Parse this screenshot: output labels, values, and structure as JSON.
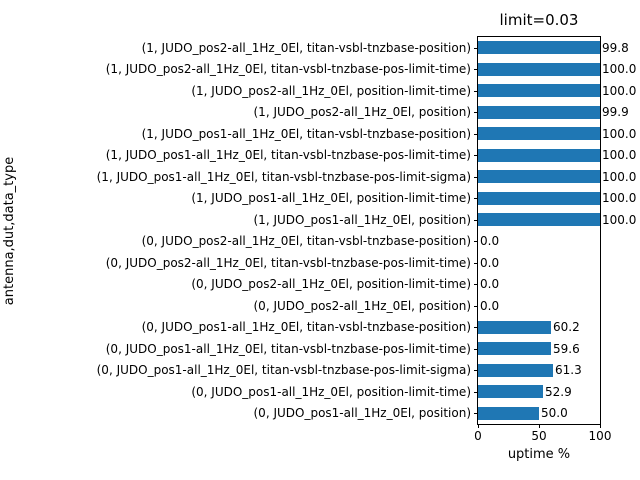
{
  "chart_data": {
    "type": "bar",
    "orientation": "horizontal",
    "title": "limit=0.03",
    "xlabel": "uptime %",
    "ylabel": "antenna,dut,data_type",
    "xlim": [
      0,
      100
    ],
    "xticks": [
      "0",
      "50",
      "100"
    ],
    "grid": false,
    "legend": false,
    "bar_color": "#1f77b4",
    "value_label_decimals": 1,
    "categories_order": "top-to-bottom",
    "categories": [
      "(1, JUDO_pos2-all_1Hz_0El, titan-vsbl-tnzbase-position)",
      "(1, JUDO_pos2-all_1Hz_0El, titan-vsbl-tnzbase-pos-limit-time)",
      "(1, JUDO_pos2-all_1Hz_0El, position-limit-time)",
      "(1, JUDO_pos2-all_1Hz_0El, position)",
      "(1, JUDO_pos1-all_1Hz_0El, titan-vsbl-tnzbase-position)",
      "(1, JUDO_pos1-all_1Hz_0El, titan-vsbl-tnzbase-pos-limit-time)",
      "(1, JUDO_pos1-all_1Hz_0El, titan-vsbl-tnzbase-pos-limit-sigma)",
      "(1, JUDO_pos1-all_1Hz_0El, position-limit-time)",
      "(1, JUDO_pos1-all_1Hz_0El, position)",
      "(0, JUDO_pos2-all_1Hz_0El, titan-vsbl-tnzbase-position)",
      "(0, JUDO_pos2-all_1Hz_0El, titan-vsbl-tnzbase-pos-limit-time)",
      "(0, JUDO_pos2-all_1Hz_0El, position-limit-time)",
      "(0, JUDO_pos2-all_1Hz_0El, position)",
      "(0, JUDO_pos1-all_1Hz_0El, titan-vsbl-tnzbase-position)",
      "(0, JUDO_pos1-all_1Hz_0El, titan-vsbl-tnzbase-pos-limit-time)",
      "(0, JUDO_pos1-all_1Hz_0El, titan-vsbl-tnzbase-pos-limit-sigma)",
      "(0, JUDO_pos1-all_1Hz_0El, position-limit-time)",
      "(0, JUDO_pos1-all_1Hz_0El, position)"
    ],
    "values": [
      99.8,
      100.0,
      100.0,
      99.9,
      100.0,
      100.0,
      100.0,
      100.0,
      100.0,
      0.0,
      0.0,
      0.0,
      0.0,
      60.2,
      59.6,
      61.3,
      52.9,
      50.0
    ]
  }
}
